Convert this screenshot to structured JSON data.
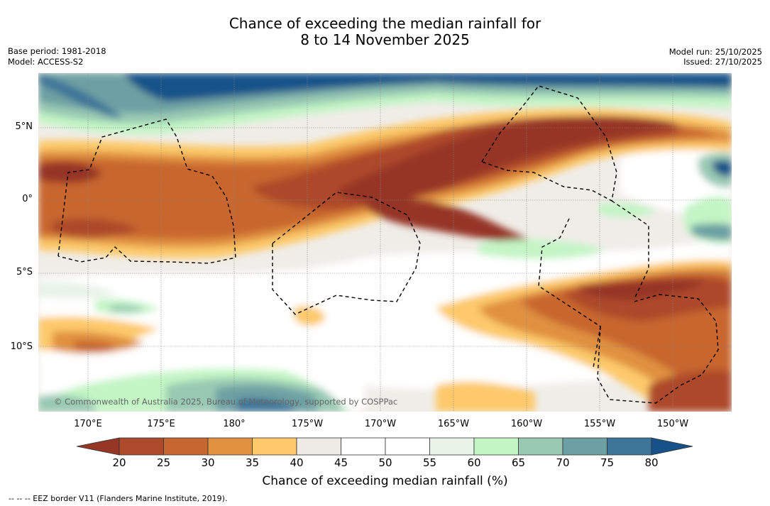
{
  "header": {
    "title_line1": "Chance of exceeding the median rainfall for",
    "title_line2": "8 to 14 November 2025",
    "base_period": "Base period: 1981-2018",
    "model": "Model: ACCESS-S2",
    "model_run": "Model run: 25/10/2025",
    "issued": "Issued: 27/10/2025"
  },
  "map": {
    "lat_labels": [
      "5°N",
      "0°",
      "5°S",
      "10°S"
    ],
    "lon_labels": [
      "170°E",
      "175°E",
      "180°",
      "175°W",
      "170°W",
      "165°W",
      "160°W",
      "155°W",
      "150°W"
    ],
    "credit": "© Commonwealth of Australia 2025, Bureau of Meteorology, supported by COSPPac"
  },
  "colorbar": {
    "title": "Chance of exceeding median rainfall (%)",
    "ticks": [
      "20",
      "25",
      "30",
      "35",
      "40",
      "45",
      "50",
      "55",
      "60",
      "65",
      "70",
      "75",
      "80"
    ],
    "colors": [
      "#ad4a2b",
      "#c8662f",
      "#e0913f",
      "#fdc96a",
      "#eeebe6",
      "#ffffff",
      "#ffffff",
      "#e9f3e8",
      "#c3f5c5",
      "#98c9b3",
      "#6da0a3",
      "#3d7598"
    ],
    "low_extend_color": "#963625",
    "high_extend_color": "#165289"
  },
  "footer": {
    "eez_legend": "--  --  -- EEZ border V11 (Flanders Marine Institute, 2019)."
  }
}
